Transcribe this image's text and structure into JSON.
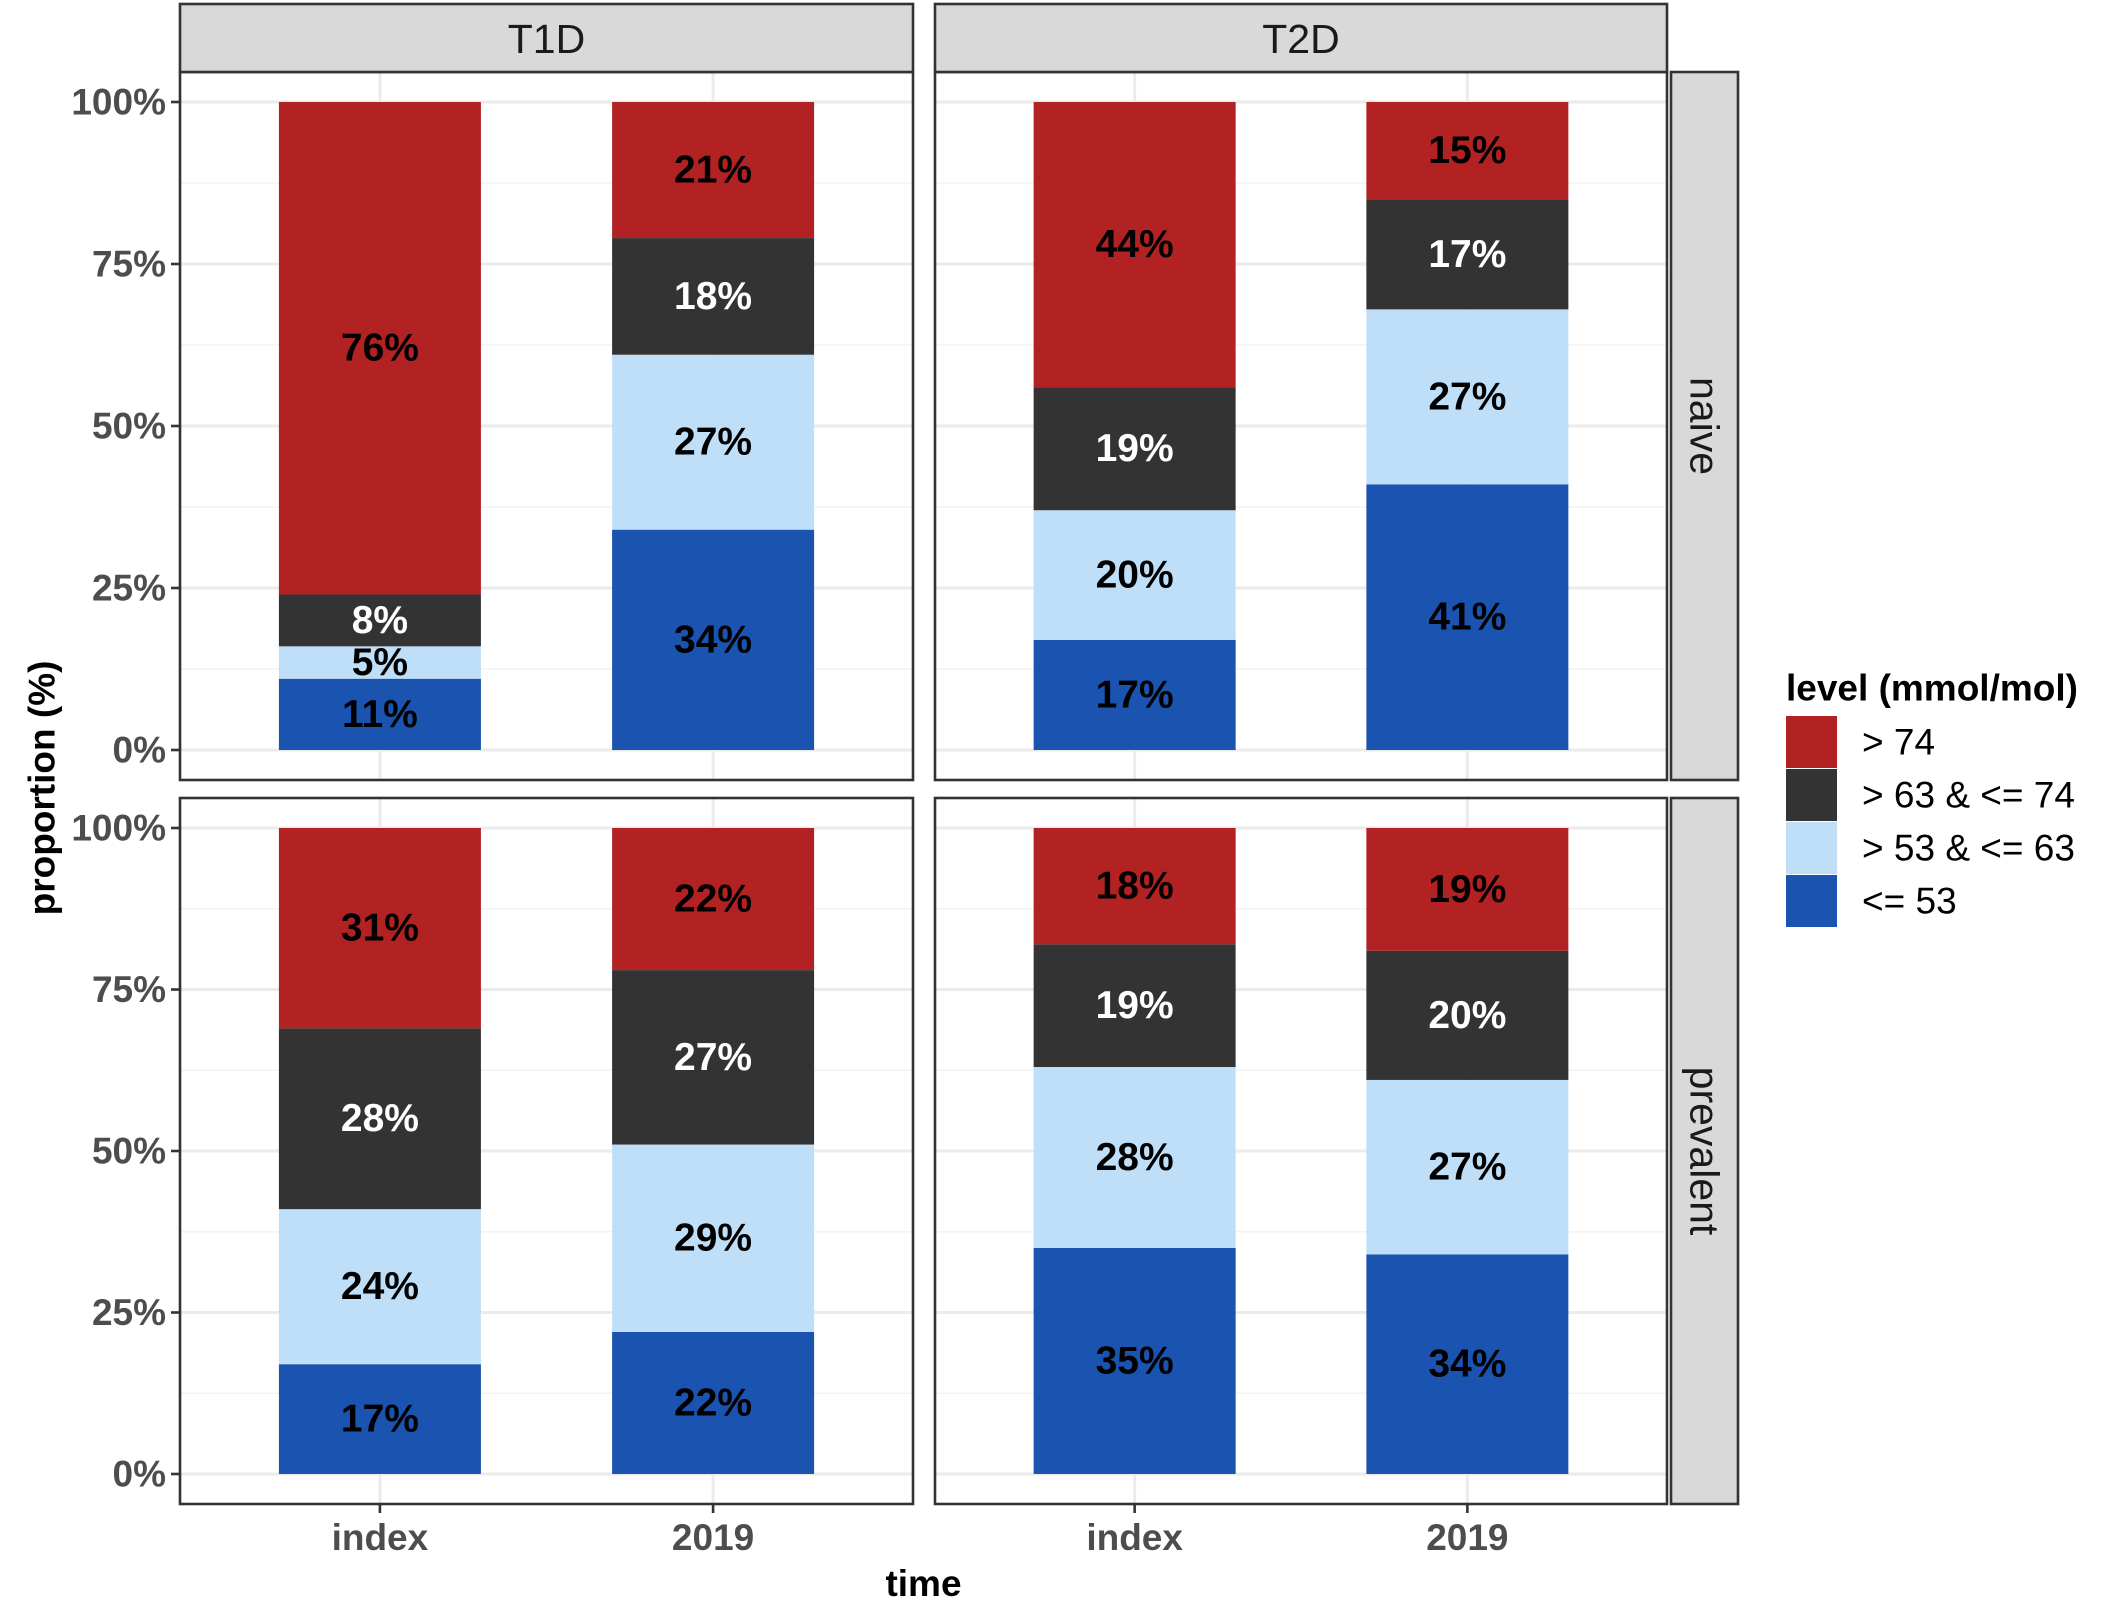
{
  "chart_data": {
    "type": "bar",
    "stacked": true,
    "facet_columns": [
      "T1D",
      "T2D"
    ],
    "facet_rows": [
      "naive",
      "prevalent"
    ],
    "categories": [
      "index",
      "2019"
    ],
    "xlabel": "time",
    "ylabel": "proportion (%)",
    "ylim": [
      0,
      100
    ],
    "yticks": [
      "0%",
      "25%",
      "50%",
      "75%",
      "100%"
    ],
    "grid": true,
    "legend": {
      "title": "level (mmol/mol)",
      "position": "right",
      "items": [
        {
          "label": "> 74",
          "color": "#b22222"
        },
        {
          "label": "> 63 & <= 74",
          "color": "#333333"
        },
        {
          "label": "> 53 & <= 63",
          "color": "#bfdff9"
        },
        {
          "label": "<= 53",
          "color": "#1a53b0"
        }
      ]
    },
    "series": [
      {
        "name": "<= 53",
        "color": "#1a53b0",
        "label_color": "#000000",
        "values": {
          "T1D|naive": [
            11,
            34
          ],
          "T2D|naive": [
            17,
            41
          ],
          "T1D|prevalent": [
            17,
            22
          ],
          "T2D|prevalent": [
            35,
            34
          ]
        }
      },
      {
        "name": "> 53 & <= 63",
        "color": "#bfdff9",
        "label_color": "#000000",
        "values": {
          "T1D|naive": [
            5,
            27
          ],
          "T2D|naive": [
            20,
            27
          ],
          "T1D|prevalent": [
            24,
            29
          ],
          "T2D|prevalent": [
            28,
            27
          ]
        }
      },
      {
        "name": "> 63 & <= 74",
        "color": "#333333",
        "label_color": "#ffffff",
        "values": {
          "T1D|naive": [
            8,
            18
          ],
          "T2D|naive": [
            19,
            17
          ],
          "T1D|prevalent": [
            28,
            27
          ],
          "T2D|prevalent": [
            19,
            20
          ]
        }
      },
      {
        "name": "> 74",
        "color": "#b22222",
        "label_color": "#000000",
        "values": {
          "T1D|naive": [
            76,
            21
          ],
          "T2D|naive": [
            44,
            15
          ],
          "T1D|prevalent": [
            31,
            22
          ],
          "T2D|prevalent": [
            18,
            19
          ]
        }
      }
    ]
  }
}
